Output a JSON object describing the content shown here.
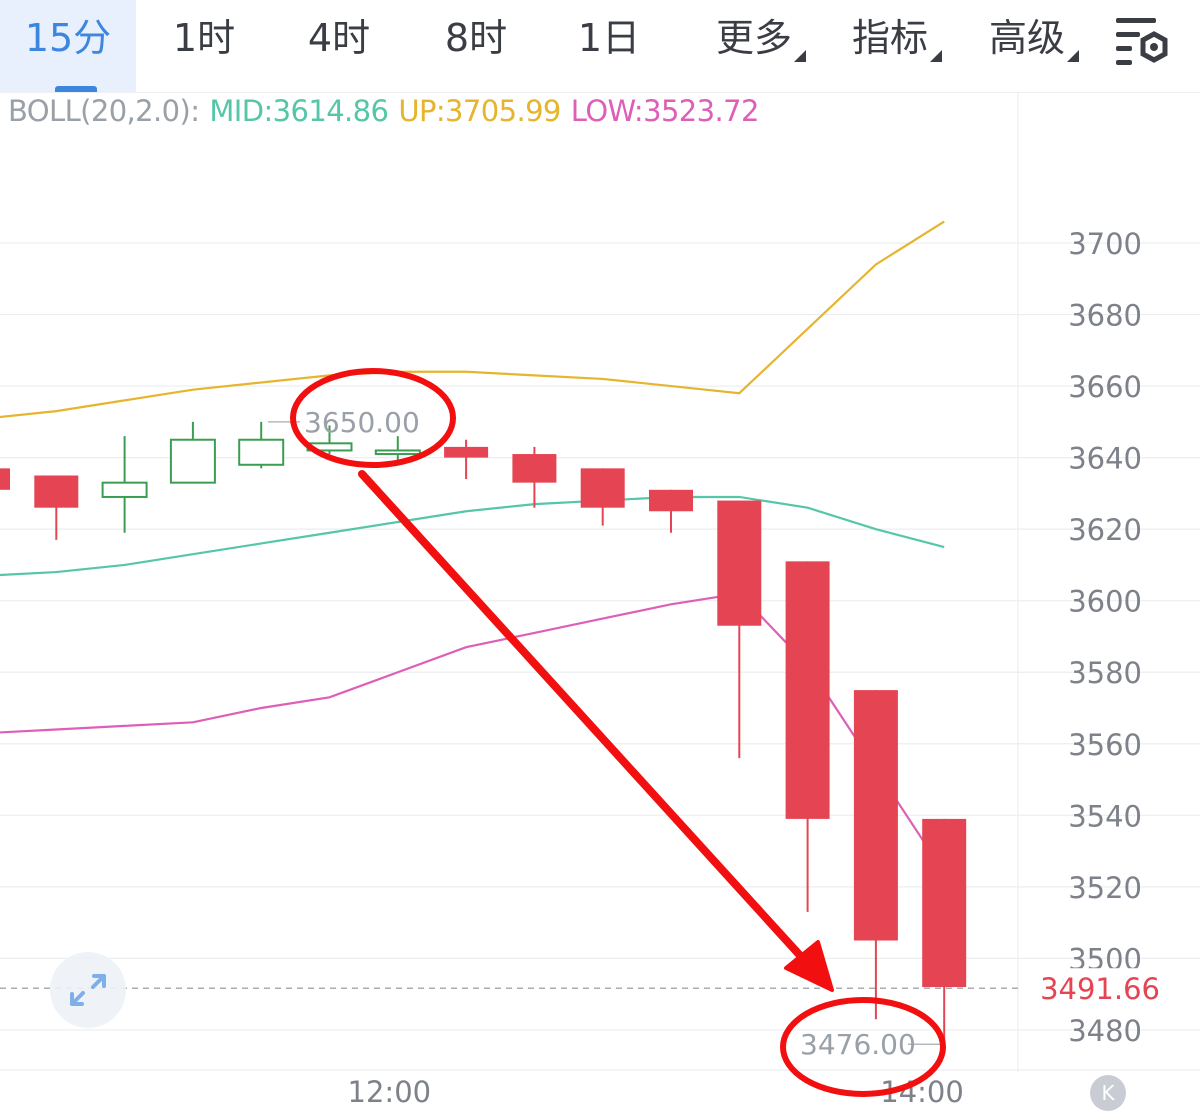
{
  "tabs": [
    {
      "label": "15分",
      "active": true,
      "caret": false
    },
    {
      "label": "1时",
      "active": false,
      "caret": false
    },
    {
      "label": "4时",
      "active": false,
      "caret": false
    },
    {
      "label": "8时",
      "active": false,
      "caret": false
    },
    {
      "label": "1日",
      "active": false,
      "caret": false
    },
    {
      "label": "更多",
      "active": false,
      "caret": true
    },
    {
      "label": "指标",
      "active": false,
      "caret": true
    },
    {
      "label": "高级",
      "active": false,
      "caret": true
    }
  ],
  "settings_icon": "chart-settings-icon",
  "indicator": {
    "name": "BOLL(20,2.0):",
    "mid": "MID:3614.86",
    "up": "UP:3705.99",
    "low": "LOW:3523.72",
    "colors": {
      "name": "#9aa0a8",
      "mid": "#55c6a8",
      "up": "#e6b52e",
      "low": "#de5fb8"
    }
  },
  "expand_icon": "expand-arrows-icon",
  "k_button": "K",
  "chart_data": {
    "type": "candlestick",
    "y_ticks": [
      "3700",
      "3680",
      "3660",
      "3640",
      "3620",
      "3600",
      "3580",
      "3560",
      "3540",
      "3520",
      "3500",
      "3480"
    ],
    "y_tick_values": [
      3700,
      3680,
      3660,
      3640,
      3620,
      3600,
      3580,
      3560,
      3540,
      3520,
      3500,
      3480
    ],
    "x_ticks": [
      {
        "label": "12:00",
        "index": 5.7
      },
      {
        "label": "14:00",
        "index": 13.5
      }
    ],
    "candles": [
      {
        "o": 3637,
        "h": 3638,
        "l": 3631,
        "c": 3631,
        "dir": "down"
      },
      {
        "o": 3635,
        "h": 3635,
        "l": 3617,
        "c": 3626,
        "dir": "down"
      },
      {
        "o": 3629,
        "h": 3646,
        "l": 3619,
        "c": 3633,
        "dir": "up"
      },
      {
        "o": 3633,
        "h": 3650,
        "l": 3633,
        "c": 3645,
        "dir": "up"
      },
      {
        "o": 3638,
        "h": 3650,
        "l": 3637,
        "c": 3645,
        "dir": "up"
      },
      {
        "o": 3642,
        "h": 3649,
        "l": 3641,
        "c": 3644,
        "dir": "up"
      },
      {
        "o": 3641,
        "h": 3646,
        "l": 3638,
        "c": 3642,
        "dir": "up"
      },
      {
        "o": 3643,
        "h": 3645,
        "l": 3634,
        "c": 3640,
        "dir": "down"
      },
      {
        "o": 3641,
        "h": 3643,
        "l": 3626,
        "c": 3633,
        "dir": "down"
      },
      {
        "o": 3637,
        "h": 3637,
        "l": 3621,
        "c": 3626,
        "dir": "down"
      },
      {
        "o": 3631,
        "h": 3631,
        "l": 3619,
        "c": 3625,
        "dir": "down"
      },
      {
        "o": 3628,
        "h": 3628,
        "l": 3556,
        "c": 3593,
        "dir": "down"
      },
      {
        "o": 3611,
        "h": 3611,
        "l": 3513,
        "c": 3539,
        "dir": "down"
      },
      {
        "o": 3575,
        "h": 3575,
        "l": 3483,
        "c": 3505,
        "dir": "down"
      },
      {
        "o": 3539,
        "h": 3539,
        "l": 3476,
        "c": 3492,
        "dir": "down"
      }
    ],
    "boll_up": [
      3651,
      3653,
      3656,
      3659,
      3661,
      3663,
      3664,
      3664,
      3663,
      3662,
      3660,
      3658,
      3676,
      3694,
      3706
    ],
    "boll_mid": [
      3607,
      3608,
      3610,
      3613,
      3616,
      3619,
      3622,
      3625,
      3627,
      3628,
      3629,
      3629,
      3626,
      3620,
      3615
    ],
    "boll_low": [
      3563,
      3564,
      3565,
      3566,
      3570,
      3573,
      3580,
      3587,
      3591,
      3595,
      3599,
      3602,
      3582,
      3553,
      3524
    ],
    "last_price": "3491.66",
    "last_price_value": 3491.66,
    "high_marker": "3650.00",
    "high_value": 3650,
    "low_marker": "3476.00",
    "low_value": 3476,
    "colors": {
      "down": "#e54552",
      "up": "#3a9e52",
      "grid": "#eceef1",
      "axis_text": "#7d8189"
    }
  }
}
